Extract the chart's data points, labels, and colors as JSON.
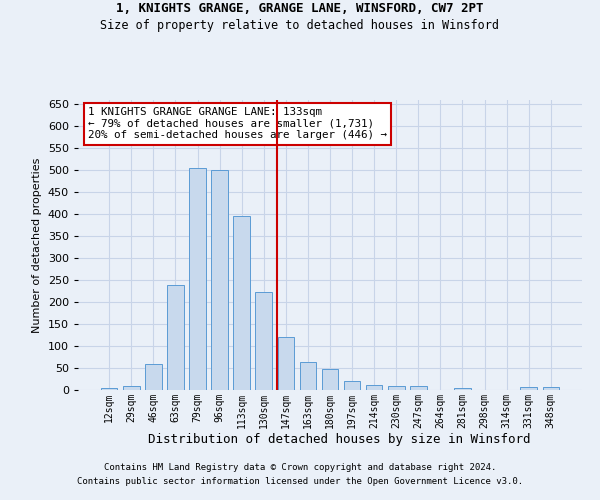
{
  "title1": "1, KNIGHTS GRANGE, GRANGE LANE, WINSFORD, CW7 2PT",
  "title2": "Size of property relative to detached houses in Winsford",
  "xlabel": "Distribution of detached houses by size in Winsford",
  "ylabel": "Number of detached properties",
  "footer1": "Contains HM Land Registry data © Crown copyright and database right 2024.",
  "footer2": "Contains public sector information licensed under the Open Government Licence v3.0.",
  "categories": [
    "12sqm",
    "29sqm",
    "46sqm",
    "63sqm",
    "79sqm",
    "96sqm",
    "113sqm",
    "130sqm",
    "147sqm",
    "163sqm",
    "180sqm",
    "197sqm",
    "214sqm",
    "230sqm",
    "247sqm",
    "264sqm",
    "281sqm",
    "298sqm",
    "314sqm",
    "331sqm",
    "348sqm"
  ],
  "values": [
    5,
    8,
    60,
    238,
    505,
    500,
    397,
    223,
    120,
    63,
    47,
    20,
    12,
    8,
    8,
    0,
    5,
    0,
    0,
    7,
    7
  ],
  "bar_color": "#c8d9ed",
  "bar_edge_color": "#5b9bd5",
  "grid_color": "#c8d4e8",
  "background_color": "#eaf0f8",
  "annotation_text": "1 KNIGHTS GRANGE GRANGE LANE: 133sqm\n← 79% of detached houses are smaller (1,731)\n20% of semi-detached houses are larger (446) →",
  "vline_x": 7.58,
  "vline_color": "#cc0000",
  "annotation_box_edge_color": "#cc0000",
  "ylim": [
    0,
    660
  ],
  "yticks": [
    0,
    50,
    100,
    150,
    200,
    250,
    300,
    350,
    400,
    450,
    500,
    550,
    600,
    650
  ]
}
